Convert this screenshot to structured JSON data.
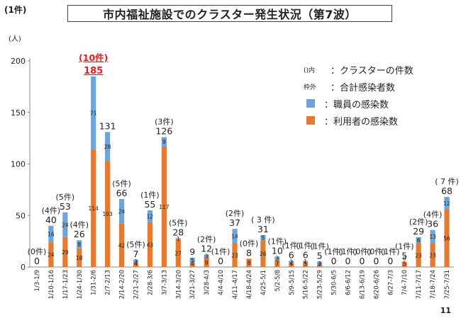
{
  "page_label": "(1件)",
  "page_number": "11",
  "colors": {
    "staff": "#6fa4d8",
    "user": "#e57a31",
    "highlight": "#e02020"
  },
  "legend": {
    "rows": [
      {
        "key": "()内",
        "text": "：クラスターの件数"
      },
      {
        "key": "枠外",
        "text": "：合計感染者数"
      },
      {
        "swatch": "staff",
        "text": "：職員の感染数"
      },
      {
        "swatch": "user",
        "text": "：利用者の感染数"
      }
    ]
  },
  "chart_data": {
    "type": "bar",
    "stacked": true,
    "title": "市内福祉施設でのクラスター発生状況（第7波）",
    "ylabel": "(人)",
    "ylim": [
      0,
      200
    ],
    "yticks": [
      0,
      50,
      100,
      150,
      200
    ],
    "categories": [
      "1/3-1/9",
      "1/10-1/16",
      "1/17-1/23",
      "1/24-1/30",
      "1/31-2/6",
      "2/7-2/13",
      "2/14-2/20",
      "2/21-2/27",
      "2/28-3/6",
      "3/7-3/13",
      "3/14-3/20",
      "3/21-3/27",
      "3/28-4/3",
      "4/4-4/10",
      "4/11-4/17",
      "4/18-4/24",
      "4/25-5/1",
      "5/2-5/8",
      "5/9-5/15",
      "5/16-5/22",
      "5/23-5/29",
      "5/30-6/5",
      "6/6-6/12",
      "6/13-6/19",
      "6/20-6/26",
      "6/27-7/3",
      "7/4-7/10",
      "7/11-7/17",
      "7/18-7/24",
      "7/25-7/31"
    ],
    "series": [
      {
        "name": "利用者の感染数",
        "color": "user",
        "values": [
          0,
          24,
          29,
          18,
          114,
          103,
          42,
          4,
          43,
          117,
          27,
          4,
          9,
          0,
          23,
          8,
          26,
          7,
          4,
          5,
          2,
          0,
          0,
          0,
          0,
          0,
          5,
          23,
          23,
          56
        ],
        "labels": [
          "",
          "24",
          "29",
          "18",
          "114",
          "103",
          "42",
          "4",
          "43",
          "117",
          "27",
          "4",
          "9",
          "",
          "23",
          "8",
          "26",
          "7",
          "4",
          "5",
          "2",
          "",
          "",
          "",
          "",
          "",
          "5",
          "23",
          "23",
          "56"
        ]
      },
      {
        "name": "職員の感染数",
        "color": "staff",
        "values": [
          0,
          16,
          24,
          8,
          71,
          28,
          24,
          3,
          12,
          9,
          1,
          5,
          3,
          0,
          14,
          0,
          5,
          3,
          2,
          1,
          3,
          0,
          0,
          0,
          0,
          0,
          0,
          6,
          13,
          12
        ],
        "labels": [
          "",
          "16",
          "24",
          "8",
          "71",
          "28",
          "24",
          "3",
          "12",
          "9",
          "1",
          "5",
          "3",
          "",
          "14",
          "",
          "5",
          "3",
          "2",
          "1",
          "3",
          "",
          "",
          "",
          "",
          "",
          "0",
          "6",
          "13",
          "12"
        ]
      }
    ],
    "totals": [
      "0",
      "40",
      "53",
      "26",
      "185",
      "131",
      "66",
      "7",
      "55",
      "126",
      "28",
      "9",
      "12",
      "0",
      "37",
      "8",
      "31",
      "10",
      "6",
      "6",
      "5",
      "0",
      "0",
      "0",
      "0",
      "0",
      "5",
      "29",
      "36",
      "68"
    ],
    "highlight_index": 4,
    "cluster_counts": [
      {
        "index": 0,
        "text": "(0件)"
      },
      {
        "index": 1,
        "text": "(4件)"
      },
      {
        "index": 2,
        "text": "(5件)"
      },
      {
        "index": 3,
        "text": "(4件)"
      },
      {
        "index": 4,
        "text": "(10件)"
      },
      {
        "index": 6,
        "text": "(5件)"
      },
      {
        "index": 7,
        "text": "(5件)"
      },
      {
        "index": 8,
        "text": "(1件)"
      },
      {
        "index": 9,
        "text": "(3件)"
      },
      {
        "index": 10,
        "text": "(5件)"
      },
      {
        "index": 12,
        "text": "(2件)"
      },
      {
        "index": 13,
        "text": "(1件)"
      },
      {
        "index": 14,
        "text": "(2件)"
      },
      {
        "index": 15,
        "text": "(0件)"
      },
      {
        "index": 16,
        "text": "( 3 件)"
      },
      {
        "index": 18,
        "text": "(1件)"
      },
      {
        "index": 19,
        "text": "(1件)"
      },
      {
        "index": 20,
        "text": "(1件)"
      },
      {
        "index": 21,
        "text": "(1件)"
      },
      {
        "index": 22,
        "text": "(1件)"
      },
      {
        "index": 23,
        "text": "(0件)"
      },
      {
        "index": 24,
        "text": "(0件)"
      },
      {
        "index": 25,
        "text": "(1件)"
      },
      {
        "index": 26,
        "text": "(1件)"
      },
      {
        "index": 27,
        "text": "(2件)"
      },
      {
        "index": 28,
        "text": "(4件)"
      },
      {
        "index": 29,
        "text": "( 7 件)"
      },
      {
        "index": 17,
        "text": "(1件)"
      }
    ]
  }
}
